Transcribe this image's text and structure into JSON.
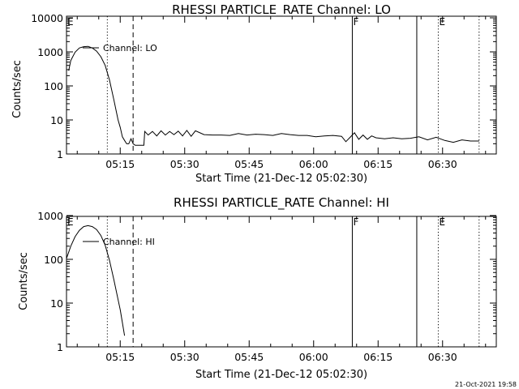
{
  "timestamp": "21-Oct-2021 19:58",
  "colors": {
    "foreground": "#000000",
    "background": "#ffffff"
  },
  "chart_data": [
    {
      "type": "line",
      "title": "RHESSI PARTICLE_RATE Channel: LO",
      "xlabel": "Start Time (21-Dec-12 05:02:30)",
      "ylabel": "Counts/sec",
      "ylog": true,
      "ylim": [
        0.9,
        10000
      ],
      "xlim_min_after_start": [
        0,
        100
      ],
      "xticks": [
        "05:15",
        "05:30",
        "05:45",
        "06:00",
        "06:15",
        "06:30"
      ],
      "yticks": [
        "1",
        "10",
        "100",
        "1000",
        "10000"
      ],
      "legend": "Channel: LO",
      "markers": [
        {
          "label": "E",
          "t": 0,
          "style": "solid"
        },
        {
          "label": "F",
          "t": 66.5,
          "style": "solid"
        },
        {
          "label": "",
          "t": 81.5,
          "style": "solid"
        },
        {
          "label": "E",
          "t": 86.5,
          "style": "dotted"
        },
        {
          "label": "",
          "t": 96,
          "style": "dotted"
        },
        {
          "label": "",
          "t": 9.5,
          "style": "dotted"
        },
        {
          "label": "",
          "t": 15.5,
          "style": "dashed"
        }
      ],
      "series": [
        {
          "x": [
            0.5,
            1,
            2,
            3,
            4,
            5,
            6,
            7,
            8,
            9,
            10,
            11,
            12,
            12.5,
            13,
            13.5,
            14,
            14.5,
            15,
            15.5,
            16,
            17,
            18,
            18.2,
            19,
            20,
            21,
            22,
            23,
            24,
            25,
            26,
            27,
            28,
            29,
            30,
            32,
            34,
            36,
            38,
            40,
            42,
            44,
            46,
            48,
            50,
            52,
            54,
            56,
            58,
            60,
            62,
            64,
            65,
            66,
            67,
            68,
            69,
            70,
            71,
            72,
            74,
            76,
            78,
            80,
            82,
            84,
            86,
            88,
            90,
            92,
            94,
            96
          ],
          "y": [
            280,
            560,
            980,
            1300,
            1420,
            1450,
            1300,
            1050,
            720,
            400,
            150,
            40,
            10,
            6,
            3.2,
            2.5,
            2,
            2,
            2.8,
            2,
            1.8,
            1.8,
            1.8,
            4.6,
            3.6,
            4.6,
            3.4,
            4.8,
            3.6,
            4.6,
            3.7,
            4.7,
            3.4,
            4.9,
            3.3,
            4.8,
            3.7,
            3.6,
            3.6,
            3.5,
            4,
            3.6,
            3.8,
            3.7,
            3.5,
            4,
            3.7,
            3.5,
            3.5,
            3.2,
            3.4,
            3.5,
            3.3,
            2.3,
            3.1,
            4.2,
            2.7,
            3.6,
            2.7,
            3.4,
            3,
            2.8,
            3,
            2.8,
            2.9,
            3.2,
            2.6,
            3.1,
            2.5,
            2.2,
            2.6,
            2.4,
            2.4
          ]
        }
      ]
    },
    {
      "type": "line",
      "title": "RHESSI PARTICLE_RATE Channel: HI",
      "xlabel": "Start Time (21-Dec-12 05:02:30)",
      "ylabel": "Counts/sec",
      "ylog": true,
      "ylim": [
        1,
        1000
      ],
      "xlim_min_after_start": [
        0,
        100
      ],
      "xticks": [
        "05:15",
        "05:30",
        "05:45",
        "06:00",
        "06:15",
        "06:30"
      ],
      "yticks": [
        "1",
        "10",
        "100",
        "1000"
      ],
      "legend": "Channel: HI",
      "markers": [
        {
          "label": "E",
          "t": 0,
          "style": "solid"
        },
        {
          "label": "F",
          "t": 66.5,
          "style": "solid"
        },
        {
          "label": "",
          "t": 81.5,
          "style": "solid"
        },
        {
          "label": "E",
          "t": 86.5,
          "style": "dotted"
        },
        {
          "label": "",
          "t": 96,
          "style": "dotted"
        },
        {
          "label": "",
          "t": 9.5,
          "style": "dotted"
        },
        {
          "label": "",
          "t": 15.5,
          "style": "dashed"
        }
      ],
      "series": [
        {
          "x": [
            0,
            1,
            2,
            3,
            4,
            5,
            6,
            7,
            8,
            9,
            10,
            11,
            12,
            12.5,
            13,
            13.5
          ],
          "y": [
            105,
            200,
            330,
            460,
            560,
            590,
            560,
            480,
            350,
            210,
            95,
            35,
            12,
            7,
            3.6,
            1.8
          ]
        }
      ]
    }
  ]
}
